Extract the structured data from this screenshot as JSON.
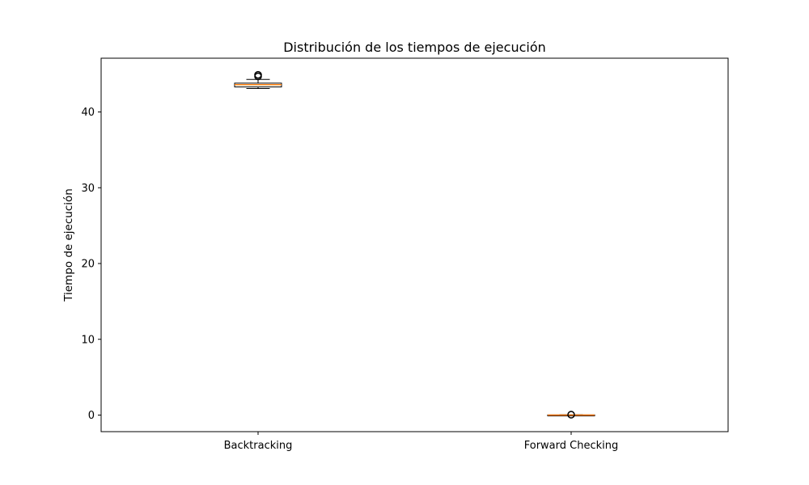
{
  "chart_data": {
    "type": "box",
    "title": "Distribución de los tiempos de ejecución",
    "xlabel": "",
    "ylabel": "Tiempo de ejecución",
    "categories": [
      "Backtracking",
      "Forward Checking"
    ],
    "ylim": [
      -2.2,
      47.0
    ],
    "yticks": [
      0,
      10,
      20,
      30,
      40
    ],
    "grid": false,
    "series": [
      {
        "category": "Backtracking",
        "whisker_low": 43.1,
        "q1": 43.3,
        "median": 43.6,
        "q3": 43.8,
        "whisker_high": 44.3,
        "outliers": [
          44.9,
          44.7
        ]
      },
      {
        "category": "Forward Checking",
        "whisker_low": 0.0,
        "q1": 0.0,
        "median": 0.0,
        "q3": 0.02,
        "whisker_high": 0.04,
        "outliers": [
          0.05
        ]
      }
    ],
    "colors": {
      "box": "#000000",
      "median": "#ff7f0e",
      "outlier": "#000000",
      "axes": "#000000"
    }
  }
}
